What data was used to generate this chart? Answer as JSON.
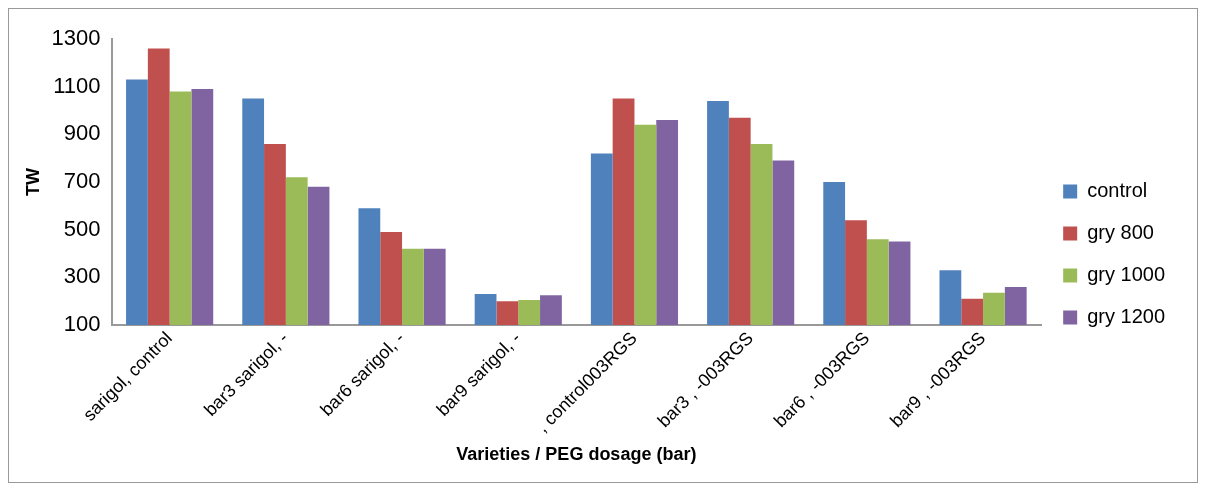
{
  "chart_data": {
    "type": "bar",
    "xlabel": "Varieties / PEG dosage (bar)",
    "ylabel": "TW",
    "categories": [
      "sarigol, control",
      "bar3 sarigol, -",
      "bar6 sarigol, -",
      "bar9 sarigol, -",
      ", control003RGS",
      "bar3 , -003RGS",
      "bar6 , -003RGS",
      "bar9 , -003RGS"
    ],
    "series": [
      {
        "name": "control",
        "color": "#4f81bd",
        "values": [
          1130,
          1050,
          590,
          230,
          820,
          1040,
          700,
          330
        ]
      },
      {
        "name": "gry 800",
        "color": "#c0504d",
        "values": [
          1260,
          860,
          490,
          200,
          1050,
          970,
          540,
          210
        ]
      },
      {
        "name": "gry 1000",
        "color": "#9bbb59",
        "values": [
          1080,
          720,
          420,
          205,
          940,
          860,
          460,
          235
        ]
      },
      {
        "name": "gry 1200",
        "color": "#8064a2",
        "values": [
          1090,
          680,
          420,
          225,
          960,
          790,
          450,
          260
        ]
      }
    ],
    "ylim": [
      100,
      1300
    ],
    "yticks": [
      100,
      300,
      500,
      700,
      900,
      1100,
      1300
    ],
    "grid": false,
    "legend": "right"
  }
}
